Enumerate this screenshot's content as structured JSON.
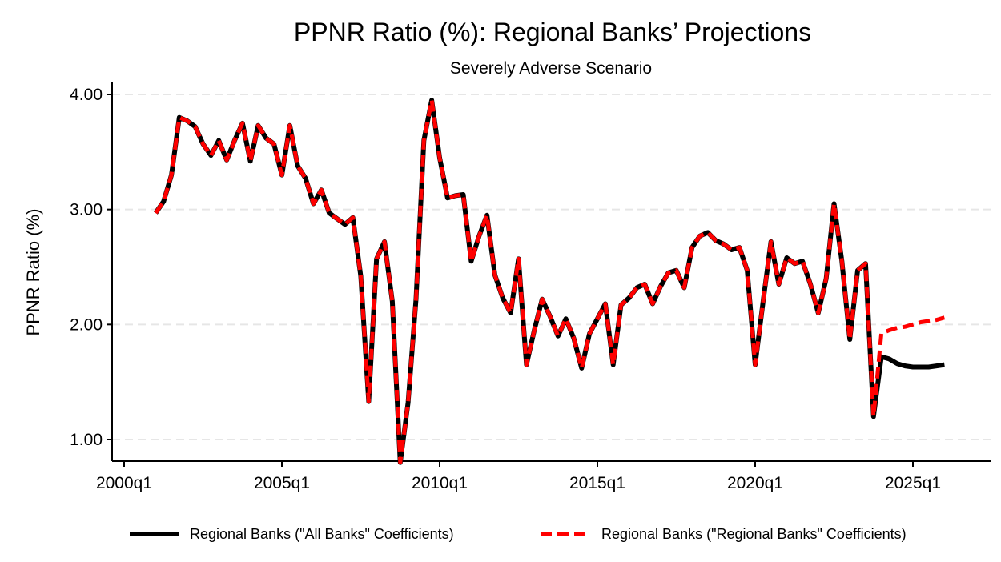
{
  "chart_data": {
    "type": "line",
    "title": "PPNR Ratio (%): Regional Banks’ Projections",
    "subtitle": "Severely Adverse Scenario",
    "xlabel": "",
    "ylabel": "PPNR Ratio (%)",
    "x_ticks": [
      "2000q1",
      "2005q1",
      "2010q1",
      "2015q1",
      "2020q1",
      "2025q1"
    ],
    "y_ticks": [
      "1.00",
      "2.00",
      "3.00",
      "4.00"
    ],
    "ylim": [
      0.85,
      4.1
    ],
    "xlim": [
      "2000q1",
      "2027q4"
    ],
    "grid": true,
    "legend_position": "bottom",
    "colors": {
      "all_banks": "#000000",
      "regional_coefficients": "#ff0000"
    },
    "historical": {
      "start": "2001q1",
      "values": [
        2.97,
        3.07,
        3.3,
        3.8,
        3.77,
        3.72,
        3.57,
        3.47,
        3.6,
        3.43,
        3.6,
        3.75,
        3.42,
        3.73,
        3.62,
        3.57,
        3.3,
        3.73,
        3.38,
        3.27,
        3.05,
        3.17,
        2.97,
        2.92,
        2.87,
        2.93,
        2.42,
        1.33,
        2.57,
        2.72,
        2.2,
        0.8,
        1.32,
        2.22,
        3.6,
        3.95,
        3.45,
        3.1,
        3.12,
        3.13,
        2.55,
        2.77,
        2.95,
        2.43,
        2.23,
        2.1,
        2.57,
        1.65,
        1.95,
        2.22,
        2.07,
        1.9,
        2.05,
        1.88,
        1.62,
        1.92,
        2.05,
        2.18,
        1.65,
        2.17,
        2.23,
        2.32,
        2.35,
        2.18,
        2.33,
        2.45,
        2.47,
        2.32,
        2.67,
        2.77,
        2.8,
        2.73,
        2.7,
        2.65,
        2.67,
        2.47,
        1.65,
        2.2,
        2.72,
        2.35,
        2.58,
        2.53,
        2.55,
        2.35,
        2.1,
        2.4,
        3.05,
        2.55,
        1.87,
        2.47,
        2.53,
        1.2
      ]
    },
    "series": [
      {
        "name": "Regional Banks (\"All Banks\" Coefficients)",
        "style": "solid",
        "projection_start": "2024q1",
        "projection": [
          1.72,
          1.7,
          1.66,
          1.64,
          1.63,
          1.63,
          1.63,
          1.64,
          1.65
        ]
      },
      {
        "name": "Regional Banks (\"Regional Banks\" Coefficients)",
        "style": "dashed",
        "projection_start": "2024q1",
        "projection": [
          1.92,
          1.95,
          1.97,
          1.98,
          2.0,
          2.02,
          2.03,
          2.04,
          2.06
        ]
      }
    ]
  }
}
